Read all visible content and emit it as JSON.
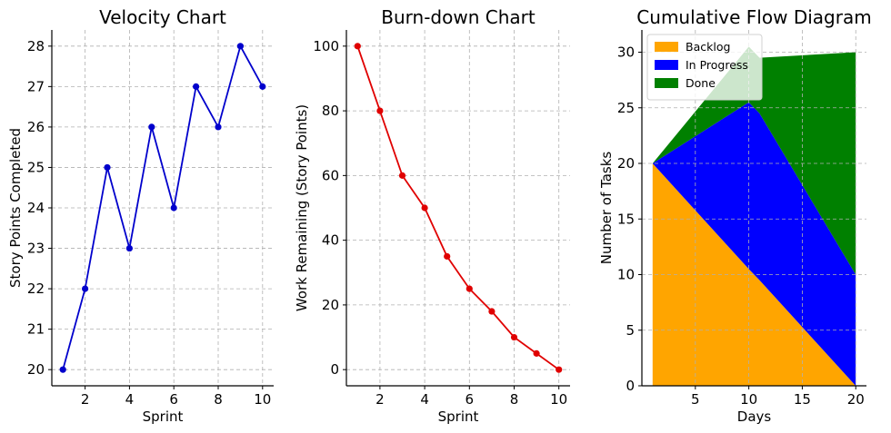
{
  "chart_data": [
    {
      "type": "line",
      "title": "Velocity Chart",
      "xlabel": "Sprint",
      "ylabel": "Story Points Completed",
      "x": [
        1,
        2,
        3,
        4,
        5,
        6,
        7,
        8,
        9,
        10
      ],
      "series": [
        {
          "name": "Velocity",
          "color": "#0000cc",
          "values": [
            20,
            22,
            25,
            23,
            26,
            24,
            27,
            26,
            28,
            27
          ]
        }
      ],
      "xlim": [
        0.5,
        10.5
      ],
      "ylim": [
        19.6,
        28.4
      ],
      "xticks": [
        2,
        4,
        6,
        8,
        10
      ],
      "yticks": [
        20,
        21,
        22,
        23,
        24,
        25,
        26,
        27,
        28
      ],
      "grid": true
    },
    {
      "type": "line",
      "title": "Burn-down Chart",
      "xlabel": "Sprint",
      "ylabel": "Work Remaining (Story Points)",
      "x": [
        1,
        2,
        3,
        4,
        5,
        6,
        7,
        8,
        9,
        10
      ],
      "series": [
        {
          "name": "Work Remaining",
          "color": "#e00000",
          "values": [
            100,
            80,
            60,
            50,
            35,
            25,
            18,
            10,
            5,
            0
          ]
        }
      ],
      "xlim": [
        0.5,
        10.5
      ],
      "ylim": [
        -5,
        105
      ],
      "xticks": [
        2,
        4,
        6,
        8,
        10
      ],
      "yticks": [
        0,
        20,
        40,
        60,
        80,
        100
      ],
      "grid": true
    },
    {
      "type": "area",
      "stacked": true,
      "title": "Cumulative Flow Diagram",
      "xlabel": "Days",
      "ylabel": "Number of Tasks",
      "x": [
        1,
        10,
        11,
        20
      ],
      "series": [
        {
          "name": "Backlog",
          "color": "#ffa500",
          "values": [
            20,
            10.5,
            9.5,
            0
          ]
        },
        {
          "name": "In Progress",
          "color": "#0000ff",
          "values": [
            0,
            15,
            15,
            10
          ]
        },
        {
          "name": "Done",
          "color": "#008000",
          "values": [
            0,
            5,
            5,
            20
          ]
        }
      ],
      "xlim": [
        0,
        21
      ],
      "ylim": [
        0,
        32
      ],
      "xticks": [
        5,
        10,
        15,
        20
      ],
      "yticks": [
        0,
        5,
        10,
        15,
        20,
        25,
        30
      ],
      "legend": "top-left",
      "grid": true
    }
  ]
}
